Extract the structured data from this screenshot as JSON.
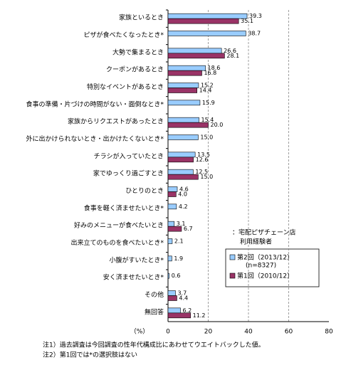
{
  "chart_data": {
    "type": "hbar",
    "categories": [
      "家族といるとき",
      "ピザが食べたくなったとき*",
      "大勢で集まるとき",
      "クーポンがあるとき",
      "特別なイベントがあるとき",
      "食事の準備・片づけの時間がない・面倒なとき*",
      "家族からリクエストがあったとき",
      "外に出かけられないとき・出かけたくないとき*",
      "チラシが入っていたとき",
      "家でゆっくり過ごすとき",
      "ひとりのとき",
      "食事を軽く済ませたいとき*",
      "好みのメニューが食べたいとき",
      "出来立てのものを食べたいとき*",
      "小腹がすいたとき*",
      "安く済ませたいとき*",
      "その他",
      "無回答"
    ],
    "series": [
      {
        "name": "第2回（2013/12）",
        "note": "(n=8327)",
        "color": "#99ccff",
        "values": [
          39.3,
          38.7,
          26.6,
          18.6,
          15.2,
          15.9,
          15.4,
          15.0,
          13.5,
          12.5,
          4.6,
          4.2,
          3.1,
          2.1,
          1.9,
          0.6,
          3.7,
          6.2
        ],
        "value_labels": [
          "39.3",
          "38.7",
          "26.6",
          "18.6",
          "15.2",
          "15.9",
          "15.4",
          "15.0",
          "13.5",
          "12.5",
          "4.6",
          "4.2",
          "3.1",
          "2.1",
          "1.9",
          "0.6",
          "3.7",
          "6.2"
        ]
      },
      {
        "name": "第1回（2010/12）",
        "color": "#993366",
        "values": [
          35.1,
          null,
          28.1,
          16.8,
          14.4,
          null,
          20.0,
          null,
          12.6,
          15.0,
          4.0,
          null,
          6.7,
          null,
          null,
          null,
          4.4,
          11.2
        ],
        "value_labels": [
          "35.1",
          null,
          "28.1",
          "16.8",
          "14.4",
          null,
          "20.0",
          null,
          "12.6",
          "15.0",
          "4.0",
          null,
          "6.7",
          null,
          null,
          null,
          "4.4",
          "11.2"
        ]
      }
    ],
    "legend_title": [
      "：宅配ピザチェーン店",
      "利用経験者"
    ],
    "xlabel": "（%）",
    "xlim": [
      0,
      80
    ],
    "xticks": [
      0,
      20,
      40,
      60,
      80
    ],
    "grid": true,
    "notes": [
      "注1）過去調査は今回調査の性年代構成比にあわせてウエイトバックした値。",
      "注2）第1回では*の選択肢はない"
    ]
  }
}
